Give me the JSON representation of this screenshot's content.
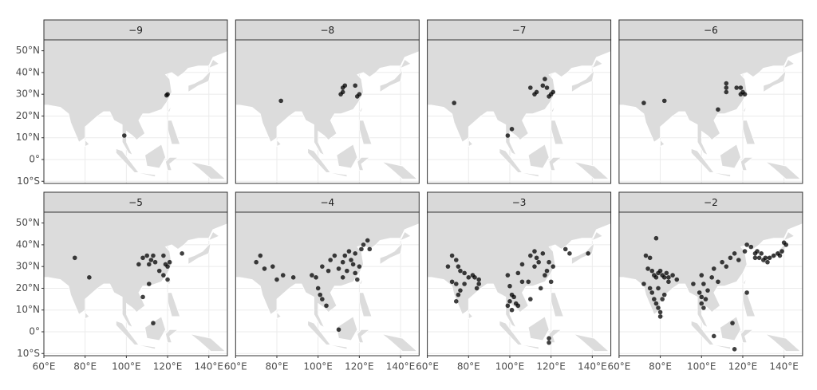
{
  "chart_data": {
    "type": "scatter",
    "xlim": [
      60,
      149
    ],
    "ylim": [
      -11,
      55
    ],
    "xticks": [
      {
        "value": 60,
        "label": "60°E"
      },
      {
        "value": 80,
        "label": "80°E"
      },
      {
        "value": 100,
        "label": "100°E"
      },
      {
        "value": 120,
        "label": "120°E"
      },
      {
        "value": 140,
        "label": "140°E"
      }
    ],
    "yticks": [
      {
        "value": -10,
        "label": "10°S"
      },
      {
        "value": 0,
        "label": "0°"
      },
      {
        "value": 10,
        "label": "10°N"
      },
      {
        "value": 20,
        "label": "20°N"
      },
      {
        "value": 30,
        "label": "30°N"
      },
      {
        "value": 40,
        "label": "40°N"
      },
      {
        "value": 50,
        "label": "50°N"
      }
    ],
    "color": "#000000",
    "panels": [
      {
        "title": "−9",
        "x": [
          120,
          119.5,
          99
        ],
        "y": [
          30,
          29.5,
          11
        ]
      },
      {
        "title": "−8",
        "x": [
          82,
          112,
          111,
          113,
          118,
          120,
          119,
          112
        ],
        "y": [
          27,
          33,
          30,
          34,
          34,
          30,
          29,
          31
        ]
      },
      {
        "title": "−7",
        "x": [
          73,
          101,
          99,
          110,
          112,
          113,
          116,
          117,
          118,
          120,
          119,
          121
        ],
        "y": [
          26,
          14,
          11,
          33,
          30,
          31,
          34,
          37,
          33,
          30,
          29,
          31
        ]
      },
      {
        "title": "−6",
        "x": [
          72,
          82,
          108,
          112,
          112,
          112,
          117,
          119,
          120,
          121,
          119
        ],
        "y": [
          26,
          27,
          23,
          35,
          33,
          31,
          33,
          33,
          31,
          30,
          30
        ]
      },
      {
        "title": "−5",
        "x": [
          75,
          82,
          106,
          108,
          110,
          111,
          112,
          113,
          114,
          111,
          108,
          113,
          118,
          119,
          120,
          121,
          118,
          120,
          127,
          116
        ],
        "y": [
          34,
          25,
          31,
          34,
          35,
          31,
          33,
          35,
          32,
          22,
          16,
          4,
          35,
          31,
          30,
          32,
          26,
          24,
          36,
          28
        ]
      },
      {
        "title": "−4",
        "x": [
          70,
          72,
          74,
          78,
          80,
          83,
          88,
          97,
          99,
          100,
          101,
          102,
          104,
          102,
          105,
          108,
          110,
          110,
          112,
          113,
          114,
          116,
          117,
          118,
          119,
          120,
          121,
          122,
          124,
          125,
          115,
          112,
          118,
          106
        ],
        "y": [
          32,
          35,
          29,
          30,
          24,
          26,
          25,
          26,
          25,
          20,
          17,
          15,
          12,
          30,
          28,
          35,
          29,
          1,
          25,
          35,
          28,
          33,
          31,
          36,
          24,
          30,
          38,
          40,
          42,
          38,
          37,
          32,
          27,
          33
        ]
      },
      {
        "title": "−3",
        "x": [
          72,
          74,
          70,
          75,
          76,
          78,
          72,
          74,
          76,
          74,
          75,
          78,
          80,
          82,
          83,
          85,
          85,
          84,
          99,
          100,
          101,
          99,
          100,
          102,
          101,
          103,
          104,
          104,
          106,
          106,
          109,
          110,
          112,
          113,
          114,
          116,
          117,
          118,
          119,
          120,
          121,
          115,
          119,
          119,
          112,
          110,
          127,
          129,
          138
        ],
        "y": [
          35,
          33,
          30,
          30,
          28,
          27,
          23,
          22,
          19,
          14,
          17,
          22,
          25,
          26,
          25,
          24,
          22,
          20,
          26,
          21,
          17,
          12,
          14,
          16,
          10,
          13,
          12,
          27,
          31,
          23,
          23,
          15,
          30,
          34,
          32,
          36,
          26,
          28,
          32,
          23,
          30,
          20,
          -3,
          -5,
          37,
          35,
          38,
          36,
          36
        ]
      },
      {
        "title": "−2",
        "x": [
          78,
          73,
          75,
          72,
          74,
          76,
          77,
          78,
          79,
          80,
          81,
          82,
          83,
          84,
          86,
          88,
          75,
          76,
          77,
          78,
          79,
          80,
          80,
          81,
          82,
          79,
          84,
          96,
          100,
          101,
          99,
          100,
          100,
          101,
          102,
          103,
          105,
          106,
          108,
          110,
          112,
          114,
          116,
          118,
          121,
          122,
          124,
          126,
          127,
          129,
          130,
          131,
          133,
          135,
          137,
          139,
          140,
          141,
          138,
          128,
          126,
          132,
          115,
          116,
          122,
          106
        ],
        "y": [
          43,
          35,
          34,
          22,
          29,
          28,
          26,
          25,
          27,
          28,
          26,
          25,
          27,
          25,
          26,
          24,
          20,
          18,
          15,
          13,
          11,
          9,
          7,
          15,
          17,
          20,
          23,
          22,
          26,
          22,
          18,
          16,
          13,
          11,
          15,
          19,
          25,
          29,
          23,
          32,
          30,
          34,
          36,
          33,
          37,
          40,
          39,
          36,
          37,
          36,
          33,
          34,
          34,
          35,
          36,
          37,
          41,
          40,
          35,
          34,
          34,
          32,
          4,
          -8,
          18,
          -2
        ]
      }
    ]
  }
}
